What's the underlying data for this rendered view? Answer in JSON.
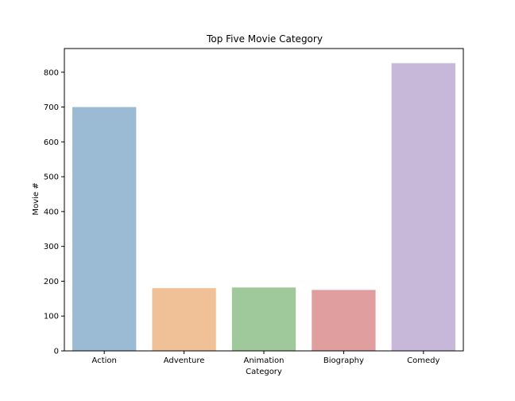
{
  "chart_data": {
    "type": "bar",
    "title": "Top Five Movie Category",
    "xlabel": "Category",
    "ylabel": "Movie #",
    "categories": [
      "Action",
      "Adventure",
      "Animation",
      "Biography",
      "Comedy"
    ],
    "values": [
      700,
      180,
      182,
      175,
      826
    ],
    "colors": [
      "#9bbad3",
      "#f0c196",
      "#9fc99b",
      "#e09f9e",
      "#c7b8da"
    ],
    "ylim": [
      0,
      868
    ],
    "yticks": [
      0,
      100,
      200,
      300,
      400,
      500,
      600,
      700,
      800
    ],
    "grid": false,
    "legend": "none"
  }
}
